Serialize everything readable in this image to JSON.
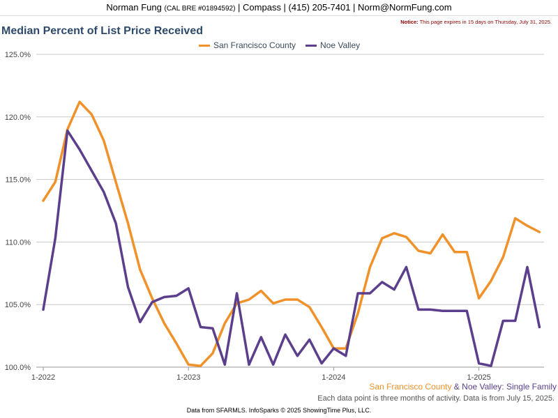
{
  "header": {
    "name": "Norman Fung",
    "license": "(CAL BRE #01894592)",
    "rest": "| Compass | (415) 205-7401 | Norm@NormFung.com"
  },
  "notice": {
    "label": "Notice:",
    "text": "This page expires in 15 days on Thursday, July 31, 2025."
  },
  "footer": {
    "series_sf": "San Francisco County",
    "amp": "&",
    "series_noe": "Noe Valley",
    "type": ": Single Family",
    "note": "Each data point is three months of activity. Data is from July 15, 2025.",
    "source": "Data from SFARMLS. InfoSparks © 2025 ShowingTime Plus, LLC."
  },
  "chart_data": {
    "type": "line",
    "title": "Median Percent of List Price Received",
    "xlabel": "",
    "ylabel": "",
    "ylim": [
      100,
      125
    ],
    "yticks": [
      "100.0%",
      "105.0%",
      "110.0%",
      "115.0%",
      "120.0%",
      "125.0%"
    ],
    "xticks": [
      "1-2022",
      "1-2023",
      "1-2024",
      "1-2025"
    ],
    "legend_position": "top-center",
    "grid": true,
    "x": [
      "2022-01",
      "2022-02",
      "2022-03",
      "2022-04",
      "2022-05",
      "2022-06",
      "2022-07",
      "2022-08",
      "2022-09",
      "2022-10",
      "2022-11",
      "2022-12",
      "2023-01",
      "2023-02",
      "2023-03",
      "2023-04",
      "2023-05",
      "2023-06",
      "2023-07",
      "2023-08",
      "2023-09",
      "2023-10",
      "2023-11",
      "2023-12",
      "2024-01",
      "2024-02",
      "2024-03",
      "2024-04",
      "2024-05",
      "2024-06",
      "2024-07",
      "2024-08",
      "2024-09",
      "2024-10",
      "2024-11",
      "2024-12",
      "2025-01",
      "2025-02",
      "2025-03",
      "2025-04",
      "2025-05",
      "2025-06"
    ],
    "series": [
      {
        "name": "San Francisco County",
        "color": "#f0912a",
        "values": [
          113.3,
          114.8,
          119.0,
          121.2,
          120.2,
          118.1,
          114.8,
          111.5,
          107.8,
          105.5,
          103.5,
          101.9,
          100.2,
          100.1,
          101.1,
          103.5,
          105.1,
          105.4,
          106.1,
          105.1,
          105.4,
          105.4,
          104.8,
          103.2,
          101.5,
          101.5,
          104.3,
          108.0,
          110.3,
          110.7,
          110.4,
          109.3,
          109.1,
          110.6,
          109.2,
          109.2,
          105.5,
          106.9,
          108.8,
          111.9,
          111.3,
          110.8
        ]
      },
      {
        "name": "Noe Valley",
        "color": "#5b3f8c",
        "values": [
          104.6,
          110.3,
          118.9,
          117.4,
          115.7,
          114.0,
          111.5,
          106.4,
          103.6,
          105.2,
          105.6,
          105.7,
          106.3,
          103.2,
          103.1,
          100.2,
          105.9,
          100.2,
          102.4,
          100.2,
          102.6,
          100.9,
          102.2,
          100.3,
          101.5,
          100.9,
          105.9,
          105.9,
          106.8,
          106.2,
          108.0,
          104.6,
          104.6,
          104.5,
          104.5,
          104.5,
          100.3,
          100.1,
          103.7,
          103.7,
          108.0,
          103.2
        ]
      }
    ]
  }
}
